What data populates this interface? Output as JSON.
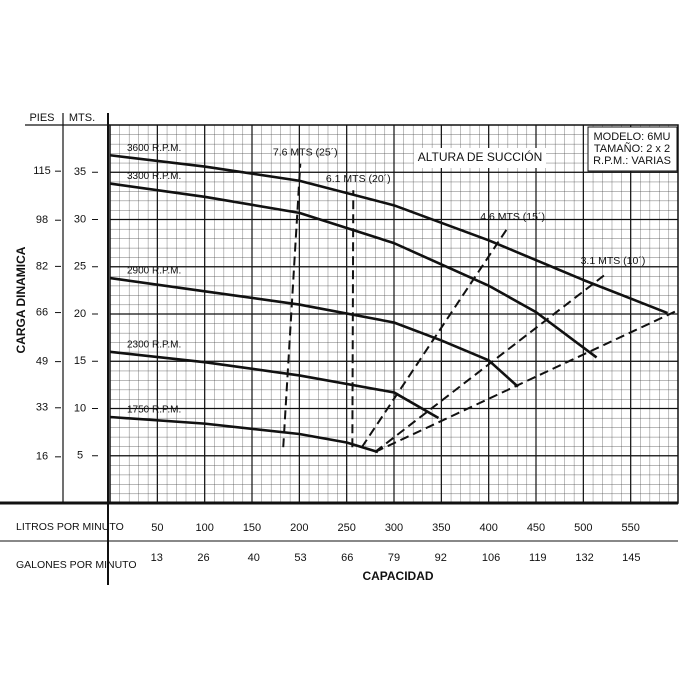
{
  "chart_data": {
    "type": "line",
    "y_title": "CARGA DINAMICA",
    "x_title": "CAPACIDAD",
    "y_unit": "MTS.",
    "y2_unit": "PIES",
    "x_unit": "LITROS POR MINUTO",
    "x2_unit": "GALONES POR MINUTO",
    "annotation": "ALTURA DE SUCCIÓN",
    "info_box": [
      "MODELO: 6MU",
      "TAMAÑO: 2 x 2",
      "R.P.M.: VARIAS"
    ],
    "xlim": [
      0,
      600
    ],
    "xticks": [
      50,
      100,
      150,
      200,
      250,
      300,
      350,
      400,
      450,
      500,
      550
    ],
    "x2lim": [
      0,
      158
    ],
    "x2ticks": [
      13,
      26,
      40,
      53,
      66,
      79,
      92,
      106,
      119,
      132,
      145
    ],
    "ylim": [
      0,
      40
    ],
    "yticks": [
      5,
      10,
      15,
      20,
      25,
      30,
      35
    ],
    "y2lim": [
      0,
      131
    ],
    "y2ticks": [
      16,
      33,
      49,
      66,
      82,
      98,
      115
    ],
    "grid": true,
    "series": [
      {
        "name": "3600 R.P.M.",
        "color": "#111111",
        "style": "solid",
        "x": [
          0,
          100,
          200,
          300,
          400,
          500,
          589
        ],
        "values": [
          36.8,
          35.6,
          34.1,
          31.5,
          27.8,
          23.6,
          20.1
        ]
      },
      {
        "name": "3300 R.P.M.",
        "color": "#111111",
        "style": "solid",
        "x": [
          0,
          100,
          200,
          300,
          400,
          450,
          514
        ],
        "values": [
          33.8,
          32.4,
          30.7,
          27.5,
          23.0,
          20.2,
          15.4
        ]
      },
      {
        "name": "2900 R.P.M.",
        "color": "#111111",
        "style": "solid",
        "x": [
          0,
          100,
          200,
          300,
          350,
          400,
          431
        ],
        "values": [
          23.8,
          22.4,
          21.0,
          19.1,
          17.2,
          15.1,
          12.3
        ]
      },
      {
        "name": "2300 R.P.M.",
        "color": "#111111",
        "style": "solid",
        "x": [
          0,
          100,
          200,
          300,
          347
        ],
        "values": [
          16.0,
          14.9,
          13.5,
          11.7,
          9.0
        ]
      },
      {
        "name": "1750 R.P.M.",
        "color": "#111111",
        "style": "solid",
        "x": [
          0,
          100,
          200,
          250,
          283
        ],
        "values": [
          9.1,
          8.4,
          7.3,
          6.4,
          5.4
        ]
      },
      {
        "name": "7.6 MTS (25´)",
        "color": "#111111",
        "style": "dashed",
        "x": [
          183,
          201
        ],
        "values": [
          5.9,
          35.9
        ]
      },
      {
        "name": "6.1 MTS (20´)",
        "color": "#111111",
        "style": "dashed",
        "x": [
          256,
          257
        ],
        "values": [
          5.9,
          33.1
        ]
      },
      {
        "name": "4.6 MTS (15´)",
        "color": "#111111",
        "style": "dashed",
        "x": [
          266,
          420
        ],
        "values": [
          5.9,
          29.1
        ]
      },
      {
        "name": "3.1 MTS (10´)",
        "color": "#111111",
        "style": "dashed",
        "x": [
          280,
          526
        ],
        "values": [
          5.4,
          24.4
        ]
      },
      {
        "color": "#111111",
        "style": "dashed",
        "x": [
          280,
          600
        ],
        "values": [
          5.4,
          20.4
        ]
      }
    ]
  }
}
